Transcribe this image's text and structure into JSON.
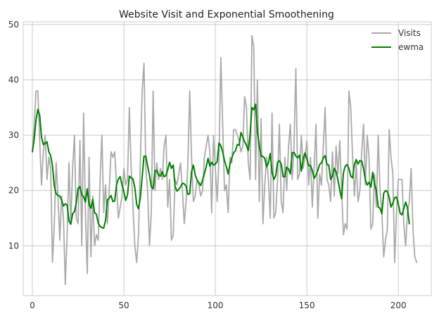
{
  "chart_data": {
    "type": "line",
    "title": "Website Visit and Exponential Smoothening",
    "xlabel": "",
    "ylabel": "",
    "xlim": [
      -5,
      218
    ],
    "ylim": [
      1,
      50.5
    ],
    "xticks": [
      0,
      50,
      100,
      150,
      200
    ],
    "yticks": [
      10,
      20,
      30,
      40,
      50
    ],
    "grid": true,
    "legend_position": "top-right",
    "colors": {
      "visits": "#aaaaaa",
      "ewma": "#008000",
      "grid": "#cccccc",
      "background": "#ffffff"
    },
    "series": [
      {
        "name": "Visits",
        "key": "visits",
        "x_start": 0,
        "values": [
          27,
          32,
          38,
          38,
          29,
          21,
          27,
          30,
          22,
          26,
          24,
          7,
          14,
          25,
          19,
          11,
          19,
          15,
          3,
          12,
          25,
          14,
          24,
          30,
          15,
          14,
          29,
          10,
          34,
          16,
          5,
          26,
          8,
          19,
          10,
          12,
          11,
          22,
          30,
          16,
          21,
          14,
          20,
          27,
          26,
          27,
          21,
          15,
          17,
          19,
          24,
          21,
          22,
          35,
          24,
          17,
          10,
          7,
          12,
          25,
          38,
          43,
          24,
          20,
          10,
          16,
          38,
          20,
          25,
          22,
          24,
          22,
          28,
          30,
          17,
          22,
          11,
          12,
          22,
          21,
          23,
          25,
          20,
          14,
          18,
          25,
          38,
          26,
          18,
          19,
          22,
          21,
          19,
          20,
          26,
          28,
          30,
          27,
          16,
          30,
          24,
          18,
          26,
          44,
          32,
          20,
          21,
          16,
          26,
          25,
          31,
          31,
          30,
          29,
          27,
          28,
          37,
          35,
          25,
          22,
          48,
          46,
          22,
          40,
          18,
          33,
          14,
          21,
          26,
          22,
          15,
          34,
          15,
          16,
          22,
          32,
          18,
          16,
          26,
          20,
          28,
          32,
          22,
          28,
          42,
          22,
          23,
          30,
          24,
          26,
          29,
          21,
          26,
          17,
          24,
          32,
          15,
          23,
          21,
          28,
          35,
          22,
          21,
          18,
          27,
          19,
          28,
          23,
          29,
          20,
          12,
          14,
          13,
          38,
          35,
          26,
          19,
          25,
          18,
          20,
          27,
          32,
          21,
          30,
          26,
          13,
          14,
          23,
          17,
          30,
          20,
          16,
          8,
          11,
          13,
          31,
          26,
          23,
          7,
          16,
          22,
          22,
          22,
          14,
          10,
          16,
          18,
          24,
          13,
          8,
          7
        ]
      },
      {
        "name": "ewma",
        "key": "ewma",
        "x_start": 0,
        "values": [
          27.0,
          29.3,
          32.8,
          34.7,
          33.6,
          29.6,
          28.3,
          28.5,
          28.8,
          27.0,
          26.3,
          24.4,
          20.8,
          19.4,
          19.1,
          19.0,
          18.2,
          17.2,
          17.6,
          17.4,
          14.5,
          13.9,
          15.8,
          16.2,
          17.7,
          20.4,
          20.7,
          19.2,
          18.9,
          17.9,
          20.3,
          17.5,
          16.8,
          18.4,
          16.0,
          15.7,
          14.1,
          13.5,
          13.3,
          13.2,
          14.6,
          18.3,
          18.6,
          19.1,
          18.0,
          18.1,
          21.0,
          22.1,
          22.5,
          21.0,
          19.8,
          18.2,
          19.2,
          22.6,
          22.3,
          22.1,
          20.5,
          17.5,
          16.7,
          18.7,
          22.4,
          26.2,
          26.2,
          24.4,
          22.8,
          20.7,
          20.3,
          23.6,
          23.6,
          22.8,
          22.6,
          23.4,
          22.5,
          22.7,
          23.8,
          25.1,
          24.0,
          24.6,
          20.7,
          19.9,
          20.2,
          20.7,
          21.3,
          21.2,
          20.8,
          19.3,
          19.4,
          23.4,
          24.6,
          22.8,
          21.9,
          21.4,
          20.9,
          21.9,
          23.0,
          24.3,
          25.8,
          24.4,
          25.1,
          24.6,
          24.8,
          25.2,
          28.6,
          28.1,
          27.0,
          25.4,
          24.3,
          23.0,
          24.8,
          25.9,
          26.8,
          27.2,
          28.3,
          28.2,
          30.5,
          29.7,
          28.8,
          28.2,
          27.2,
          30.2,
          35.0,
          34.6,
          35.6,
          30.7,
          28.1,
          26.2,
          26.2,
          25.8,
          24.3,
          25.0,
          26.7,
          23.3,
          22.0,
          22.7,
          25.1,
          25.4,
          24.8,
          22.5,
          22.5,
          24.2,
          23.9,
          23.0,
          26.8,
          26.9,
          26.2,
          25.9,
          26.4,
          23.5,
          25.7,
          26.8,
          25.7,
          24.5,
          24.5,
          23.6,
          22.2,
          22.8,
          23.6,
          24.7,
          25.0,
          25.9,
          26.3,
          24.7,
          24.6,
          22.0,
          22.6,
          24.0,
          23.4,
          21.9,
          20.1,
          18.5,
          23.2,
          24.4,
          24.7,
          24.0,
          22.6,
          22.3,
          24.7,
          25.6,
          24.8,
          25.4,
          25.3,
          23.9,
          21.9,
          21.0,
          21.5,
          20.6,
          23.3,
          21.2,
          20.0,
          17.0,
          16.8,
          15.8,
          19.5,
          20.0,
          19.8,
          18.8,
          17.0,
          17.7,
          18.7,
          18.8,
          17.6,
          15.9,
          15.6,
          16.7,
          17.9,
          16.9,
          14.0
        ]
      }
    ]
  }
}
